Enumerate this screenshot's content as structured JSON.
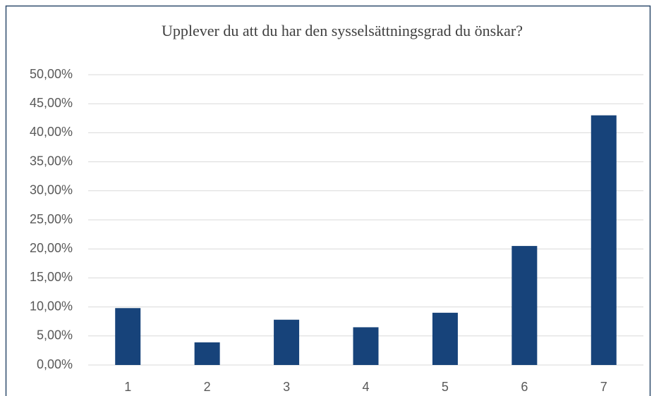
{
  "chart_data": {
    "type": "bar",
    "title": "Upplever du att du har den sysselsättningsgrad du önskar?",
    "categories": [
      "1",
      "2",
      "3",
      "4",
      "5",
      "6",
      "7"
    ],
    "values": [
      9.8,
      3.9,
      7.8,
      6.5,
      9.0,
      20.5,
      43.0
    ],
    "color": "#17437a",
    "ylim": [
      0,
      50
    ],
    "yticks": [
      {
        "value": 0,
        "label": "0,00%"
      },
      {
        "value": 5,
        "label": "5,00%"
      },
      {
        "value": 10,
        "label": "10,00%"
      },
      {
        "value": 15,
        "label": "15,00%"
      },
      {
        "value": 20,
        "label": "20,00%"
      },
      {
        "value": 25,
        "label": "25,00%"
      },
      {
        "value": 30,
        "label": "30,00%"
      },
      {
        "value": 35,
        "label": "35,00%"
      },
      {
        "value": 40,
        "label": "40,00%"
      },
      {
        "value": 45,
        "label": "45,00%"
      },
      {
        "value": 50,
        "label": "50,00%"
      }
    ],
    "grid": true
  }
}
